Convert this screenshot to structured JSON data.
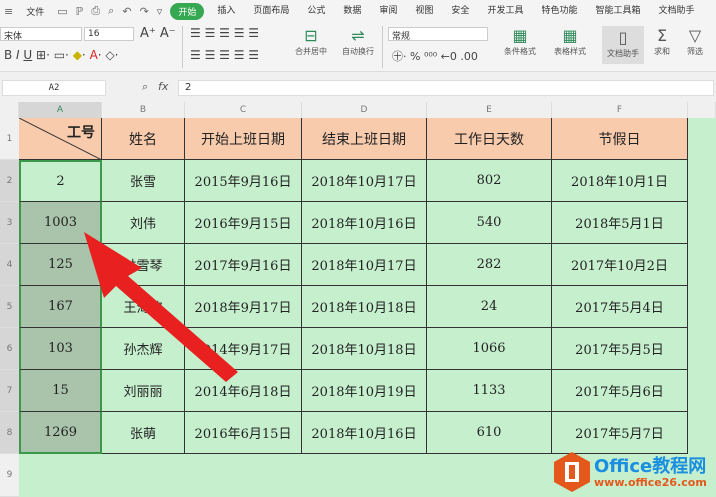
{
  "menu": {
    "file": "文件",
    "tabs": [
      "开始",
      "插入",
      "页面布局",
      "公式",
      "数据",
      "审阅",
      "视图",
      "安全",
      "开发工具",
      "特色功能",
      "智能工具箱",
      "文档助手"
    ],
    "active": "开始"
  },
  "ribbon": {
    "font_name": "宋体",
    "font_size": "16",
    "number_format": "常规",
    "merge": "合并居中",
    "wrap": "自动换行",
    "cond_format": "条件格式",
    "table_style": "表格样式",
    "doc_helper": "文档助手",
    "sum": "求和",
    "filter": "筛选"
  },
  "formula": {
    "name_box": "A2",
    "fx": "fx",
    "value": "2"
  },
  "columns": [
    "A",
    "B",
    "C",
    "D",
    "E",
    "F"
  ],
  "rows": [
    "1",
    "2",
    "3",
    "4",
    "5",
    "6",
    "7",
    "8",
    "9"
  ],
  "table": {
    "headers": [
      "工号",
      "姓名",
      "开始上班日期",
      "结束上班日期",
      "工作日天数",
      "节假日"
    ],
    "body": [
      [
        "2",
        "张雪",
        "2015年9月16日",
        "2018年10月17日",
        "802",
        "2018年10月1日"
      ],
      [
        "1003",
        "刘伟",
        "2016年9月15日",
        "2018年10月16日",
        "540",
        "2018年5月1日"
      ],
      [
        "125",
        "林雪琴",
        "2017年9月16日",
        "2018年10月17日",
        "282",
        "2017年10月2日"
      ],
      [
        "167",
        "王海波",
        "2018年9月17日",
        "2018年10月18日",
        "24",
        "2017年5月4日"
      ],
      [
        "103",
        "孙杰辉",
        "2014年9月17日",
        "2018年10月18日",
        "1066",
        "2017年5月5日"
      ],
      [
        "15",
        "刘丽丽",
        "2014年6月18日",
        "2018年10月19日",
        "1133",
        "2017年5月6日"
      ],
      [
        "1269",
        "张萌",
        "2016年6月15日",
        "2018年10月16日",
        "610",
        "2017年5月7日"
      ]
    ]
  },
  "watermark": {
    "brand": "Office教程网",
    "url": "www.office26.com"
  },
  "colors": {
    "header_fill": "#f8cbad",
    "body_fill": "#c6efce",
    "selection": "#a9c4aa",
    "arrow": "#e8201f",
    "accent": "#36a852"
  }
}
